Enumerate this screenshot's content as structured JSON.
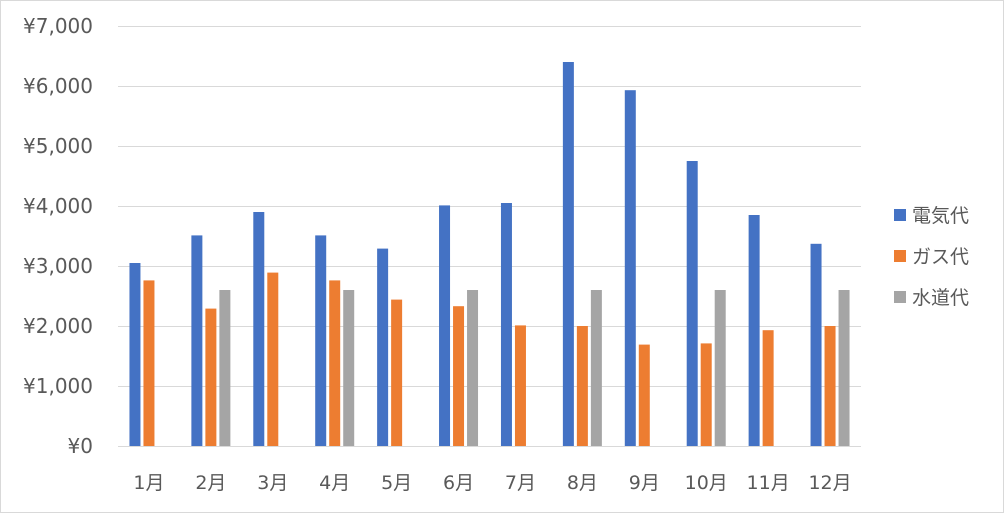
{
  "chart_data": {
    "type": "bar",
    "categories": [
      "1月",
      "2月",
      "3月",
      "4月",
      "5月",
      "6月",
      "7月",
      "8月",
      "9月",
      "10月",
      "11月",
      "12月"
    ],
    "series": [
      {
        "name": "電気代",
        "color": "#4472C4",
        "values": [
          3050,
          3510,
          3900,
          3510,
          3290,
          4010,
          4050,
          6400,
          5930,
          4750,
          3850,
          3370
        ]
      },
      {
        "name": "ガス代",
        "color": "#ED7D31",
        "values": [
          2760,
          2290,
          2890,
          2760,
          2440,
          2330,
          2010,
          2000,
          1690,
          1710,
          1930,
          2000
        ]
      },
      {
        "name": "水道代",
        "color": "#A5A5A5",
        "values": [
          null,
          2600,
          null,
          2600,
          null,
          2600,
          null,
          2600,
          null,
          2600,
          null,
          2600
        ]
      }
    ],
    "title": "",
    "xlabel": "",
    "ylabel": "",
    "ylim": [
      0,
      7000
    ],
    "yticks": [
      0,
      1000,
      2000,
      3000,
      4000,
      5000,
      6000,
      7000
    ],
    "ytick_labels": [
      "¥0",
      "¥1,000",
      "¥2,000",
      "¥3,000",
      "¥4,000",
      "¥5,000",
      "¥6,000",
      "¥7,000"
    ],
    "grid": true,
    "gridline_color": "#D9D9D9",
    "legend_position": "right"
  }
}
